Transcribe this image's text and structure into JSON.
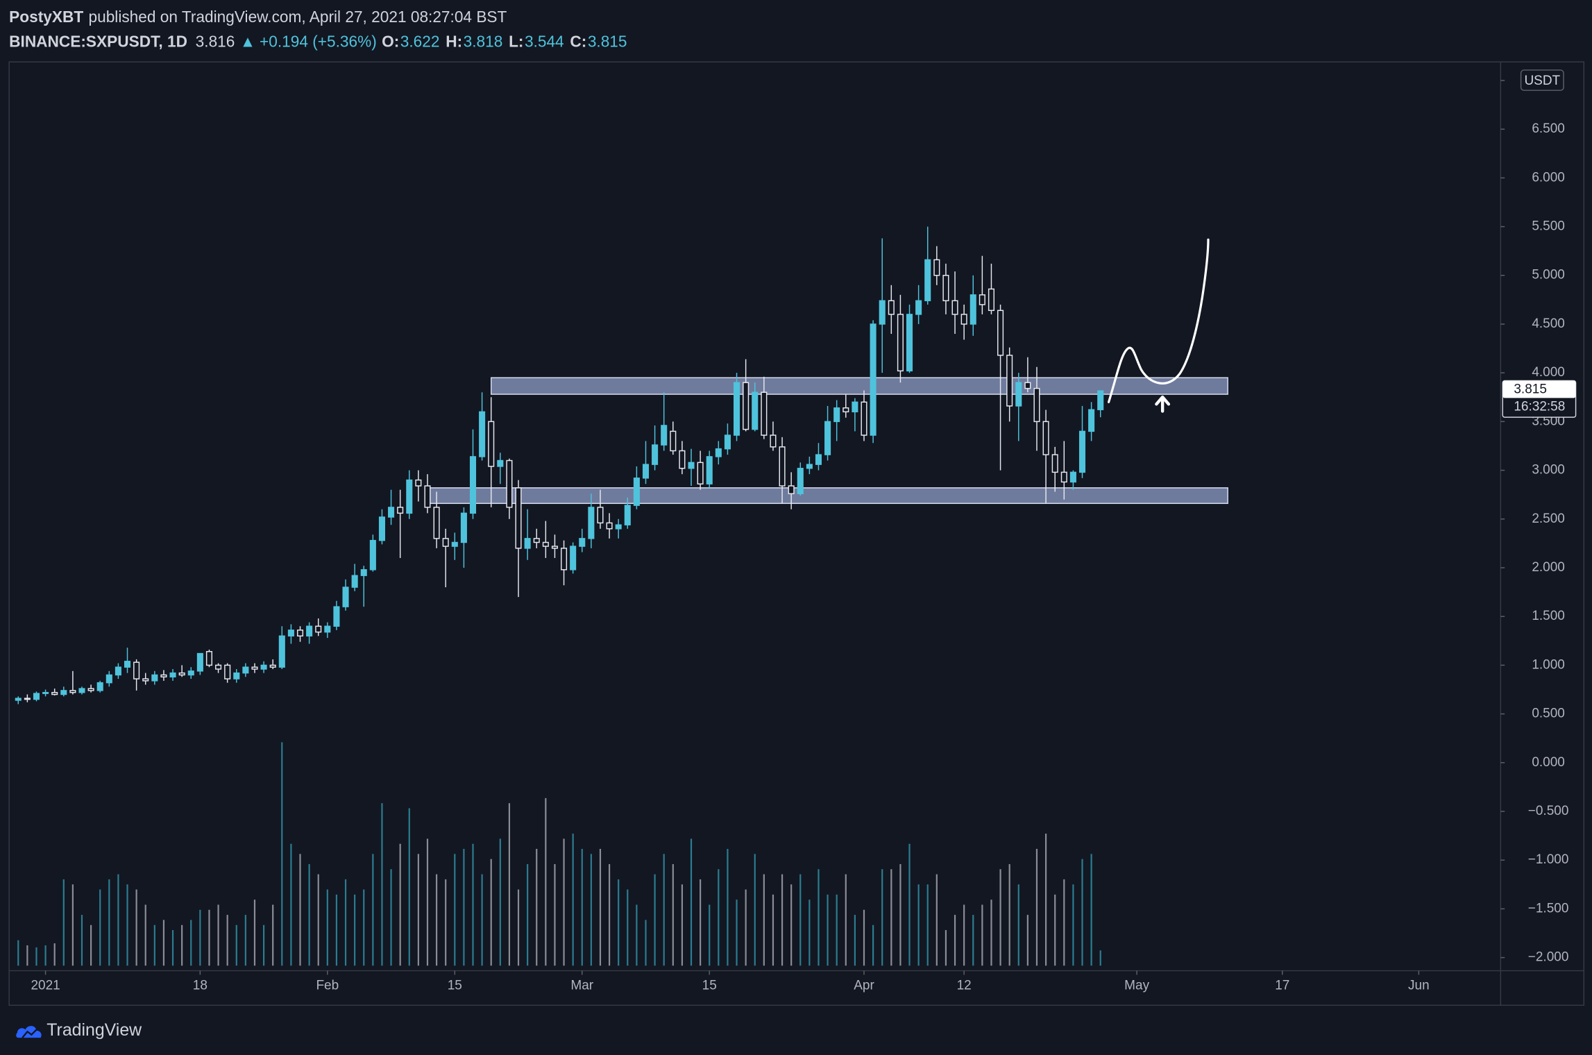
{
  "chart_data": {
    "type": "candlestick",
    "header": {
      "author": "PostyXBT",
      "published": "published on TradingView.com, April 27, 2021 08:27:04 BST",
      "symbol": "BINANCE:SXPUSDT, 1D",
      "last": "3.816",
      "arrow": "▲",
      "change": "+0.194 (+5.36%)",
      "ohlc_labels": [
        {
          "label": "O:",
          "value": "3.622"
        },
        {
          "label": "H:",
          "value": "3.818"
        },
        {
          "label": "L:",
          "value": "3.544"
        },
        {
          "label": "C:",
          "value": "3.815"
        }
      ]
    },
    "currency": "USDT",
    "price_label": "3.815",
    "countdown": "16:32:58",
    "footer": "TradingView",
    "up_color": "#4fc3dc",
    "down_color": "#e6e8ee",
    "volume_up_color": "#2b7d90",
    "volume_down_color": "#8a8d96",
    "zone_color": "rgba(168,186,232,0.62)",
    "xlim": [
      "2020-12-28",
      "2021-06-10"
    ],
    "ylim": [
      -2.135,
      7.19
    ],
    "xticks": [
      {
        "value": "2021-01-01",
        "label": "2021"
      },
      {
        "value": "2021-01-18",
        "label": "18"
      },
      {
        "value": "2021-02-01",
        "label": "Feb"
      },
      {
        "value": "2021-02-15",
        "label": "15"
      },
      {
        "value": "2021-03-01",
        "label": "Mar"
      },
      {
        "value": "2021-03-15",
        "label": "15"
      },
      {
        "value": "2021-04-01",
        "label": "Apr"
      },
      {
        "value": "2021-04-12",
        "label": "12"
      },
      {
        "value": "2021-05-01",
        "label": "May"
      },
      {
        "value": "2021-05-17",
        "label": "17"
      },
      {
        "value": "2021-06-01",
        "label": "Jun"
      }
    ],
    "yticks": [
      7,
      {
        "value": 6.5,
        "label": "6.500"
      },
      {
        "value": 6,
        "label": "6.000"
      },
      {
        "value": 5.5,
        "label": "5.500"
      },
      {
        "value": 5,
        "label": "5.000"
      },
      {
        "value": 4.5,
        "label": "4.500"
      },
      {
        "value": 4,
        "label": "4.000"
      },
      {
        "value": 3.5,
        "label": "3.500"
      },
      {
        "value": 3,
        "label": "3.000"
      },
      {
        "value": 2.5,
        "label": "2.500"
      },
      {
        "value": 2,
        "label": "2.000"
      },
      {
        "value": 1.5,
        "label": "1.500"
      },
      {
        "value": 1,
        "label": "1.000"
      },
      {
        "value": 0.5,
        "label": "0.500"
      },
      {
        "value": 0,
        "label": "0.000"
      },
      {
        "value": -0.5,
        "label": "−0.500"
      },
      {
        "value": -1,
        "label": "−1.000"
      },
      {
        "value": -1.5,
        "label": "−1.500"
      },
      {
        "value": -2,
        "label": "−2.000"
      }
    ],
    "zones": [
      {
        "x": [
          "2021-02-19",
          "2021-05-11"
        ],
        "y": [
          3.78,
          3.95
        ]
      },
      {
        "x": [
          "2021-02-12",
          "2021-05-11"
        ],
        "y": [
          2.66,
          2.82
        ]
      }
    ],
    "x": [
      "2020-12-29",
      "2020-12-30",
      "2020-12-31",
      "2021-01-01",
      "2021-01-02",
      "2021-01-03",
      "2021-01-04",
      "2021-01-05",
      "2021-01-06",
      "2021-01-07",
      "2021-01-08",
      "2021-01-09",
      "2021-01-10",
      "2021-01-11",
      "2021-01-12",
      "2021-01-13",
      "2021-01-14",
      "2021-01-15",
      "2021-01-16",
      "2021-01-17",
      "2021-01-18",
      "2021-01-19",
      "2021-01-20",
      "2021-01-21",
      "2021-01-22",
      "2021-01-23",
      "2021-01-24",
      "2021-01-25",
      "2021-01-26",
      "2021-01-27",
      "2021-01-28",
      "2021-01-29",
      "2021-01-30",
      "2021-01-31",
      "2021-02-01",
      "2021-02-02",
      "2021-02-03",
      "2021-02-04",
      "2021-02-05",
      "2021-02-06",
      "2021-02-07",
      "2021-02-08",
      "2021-02-09",
      "2021-02-10",
      "2021-02-11",
      "2021-02-12",
      "2021-02-13",
      "2021-02-14",
      "2021-02-15",
      "2021-02-16",
      "2021-02-17",
      "2021-02-18",
      "2021-02-19",
      "2021-02-20",
      "2021-02-21",
      "2021-02-22",
      "2021-02-23",
      "2021-02-24",
      "2021-02-25",
      "2021-02-26",
      "2021-02-27",
      "2021-02-28",
      "2021-03-01",
      "2021-03-02",
      "2021-03-03",
      "2021-03-04",
      "2021-03-05",
      "2021-03-06",
      "2021-03-07",
      "2021-03-08",
      "2021-03-09",
      "2021-03-10",
      "2021-03-11",
      "2021-03-12",
      "2021-03-13",
      "2021-03-14",
      "2021-03-15",
      "2021-03-16",
      "2021-03-17",
      "2021-03-18",
      "2021-03-19",
      "2021-03-20",
      "2021-03-21",
      "2021-03-22",
      "2021-03-23",
      "2021-03-24",
      "2021-03-25",
      "2021-03-26",
      "2021-03-27",
      "2021-03-28",
      "2021-03-29",
      "2021-03-30",
      "2021-03-31",
      "2021-04-01",
      "2021-04-02",
      "2021-04-03",
      "2021-04-04",
      "2021-04-05",
      "2021-04-06",
      "2021-04-07",
      "2021-04-08",
      "2021-04-09",
      "2021-04-10",
      "2021-04-11",
      "2021-04-12",
      "2021-04-13",
      "2021-04-14",
      "2021-04-15",
      "2021-04-16",
      "2021-04-17",
      "2021-04-18",
      "2021-04-19",
      "2021-04-20",
      "2021-04-21",
      "2021-04-22",
      "2021-04-23",
      "2021-04-24",
      "2021-04-25",
      "2021-04-26",
      "2021-04-27"
    ],
    "ohlc": [
      [
        0.64,
        0.68,
        0.6,
        0.66
      ],
      [
        0.66,
        0.7,
        0.62,
        0.65
      ],
      [
        0.65,
        0.73,
        0.63,
        0.71
      ],
      [
        0.71,
        0.75,
        0.68,
        0.72
      ],
      [
        0.72,
        0.76,
        0.69,
        0.7
      ],
      [
        0.7,
        0.78,
        0.68,
        0.74
      ],
      [
        0.74,
        0.94,
        0.7,
        0.72
      ],
      [
        0.72,
        0.78,
        0.7,
        0.76
      ],
      [
        0.76,
        0.8,
        0.72,
        0.74
      ],
      [
        0.74,
        0.84,
        0.72,
        0.82
      ],
      [
        0.82,
        0.94,
        0.78,
        0.9
      ],
      [
        0.9,
        1.02,
        0.86,
        0.98
      ],
      [
        0.98,
        1.18,
        0.92,
        1.04
      ],
      [
        1.03,
        1.06,
        0.74,
        0.86
      ],
      [
        0.86,
        0.92,
        0.8,
        0.84
      ],
      [
        0.84,
        0.94,
        0.8,
        0.9
      ],
      [
        0.9,
        0.95,
        0.84,
        0.88
      ],
      [
        0.88,
        0.96,
        0.84,
        0.92
      ],
      [
        0.92,
        1.0,
        0.88,
        0.9
      ],
      [
        0.9,
        0.98,
        0.86,
        0.94
      ],
      [
        0.94,
        1.06,
        0.9,
        1.12
      ],
      [
        1.14,
        1.16,
        0.98,
        1.0
      ],
      [
        1.0,
        1.02,
        0.92,
        0.96
      ],
      [
        1.0,
        1.02,
        0.82,
        0.86
      ],
      [
        0.86,
        0.96,
        0.82,
        0.92
      ],
      [
        0.92,
        1.02,
        0.88,
        0.98
      ],
      [
        0.98,
        1.02,
        0.92,
        0.96
      ],
      [
        0.96,
        1.04,
        0.92,
        1.0
      ],
      [
        1.0,
        1.06,
        0.96,
        0.98
      ],
      [
        0.98,
        1.4,
        0.96,
        1.3
      ],
      [
        1.3,
        1.42,
        1.22,
        1.36
      ],
      [
        1.36,
        1.4,
        1.24,
        1.3
      ],
      [
        1.3,
        1.44,
        1.22,
        1.4
      ],
      [
        1.4,
        1.48,
        1.3,
        1.34
      ],
      [
        1.34,
        1.44,
        1.28,
        1.4
      ],
      [
        1.4,
        1.66,
        1.36,
        1.6
      ],
      [
        1.6,
        1.88,
        1.56,
        1.8
      ],
      [
        1.8,
        2.04,
        1.76,
        1.92
      ],
      [
        1.92,
        2.02,
        1.6,
        1.98
      ],
      [
        1.98,
        2.34,
        1.96,
        2.28
      ],
      [
        2.28,
        2.6,
        2.24,
        2.52
      ],
      [
        2.52,
        2.8,
        2.44,
        2.62
      ],
      [
        2.62,
        2.8,
        2.1,
        2.56
      ],
      [
        2.56,
        3.0,
        2.5,
        2.9
      ],
      [
        2.9,
        3.0,
        2.68,
        2.84
      ],
      [
        2.84,
        2.96,
        2.56,
        2.62
      ],
      [
        2.62,
        2.78,
        2.2,
        2.3
      ],
      [
        2.3,
        2.4,
        1.8,
        2.22
      ],
      [
        2.22,
        2.36,
        2.08,
        2.26
      ],
      [
        2.26,
        2.62,
        2.0,
        2.56
      ],
      [
        2.56,
        3.42,
        2.5,
        3.14
      ],
      [
        3.14,
        3.8,
        3.1,
        3.6
      ],
      [
        3.5,
        3.75,
        2.62,
        3.04
      ],
      [
        3.04,
        3.18,
        2.86,
        3.1
      ],
      [
        3.1,
        3.12,
        2.5,
        2.62
      ],
      [
        2.82,
        2.9,
        1.7,
        2.2
      ],
      [
        2.2,
        2.6,
        2.08,
        2.3
      ],
      [
        2.3,
        2.4,
        2.2,
        2.26
      ],
      [
        2.26,
        2.48,
        2.1,
        2.22
      ],
      [
        2.22,
        2.34,
        2.1,
        2.2
      ],
      [
        2.2,
        2.28,
        1.82,
        1.98
      ],
      [
        1.98,
        2.26,
        1.94,
        2.22
      ],
      [
        2.22,
        2.4,
        2.16,
        2.3
      ],
      [
        2.3,
        2.76,
        2.2,
        2.62
      ],
      [
        2.62,
        2.8,
        2.4,
        2.46
      ],
      [
        2.46,
        2.56,
        2.3,
        2.4
      ],
      [
        2.4,
        2.5,
        2.3,
        2.44
      ],
      [
        2.44,
        2.72,
        2.4,
        2.64
      ],
      [
        2.64,
        3.04,
        2.6,
        2.92
      ],
      [
        2.92,
        3.3,
        2.86,
        3.06
      ],
      [
        3.06,
        3.46,
        3.0,
        3.26
      ],
      [
        3.26,
        3.8,
        3.2,
        3.46
      ],
      [
        3.4,
        3.5,
        3.16,
        3.2
      ],
      [
        3.2,
        3.3,
        2.96,
        3.02
      ],
      [
        3.02,
        3.22,
        2.84,
        3.08
      ],
      [
        3.08,
        3.2,
        2.8,
        2.86
      ],
      [
        2.86,
        3.2,
        2.82,
        3.14
      ],
      [
        3.14,
        3.3,
        3.06,
        3.22
      ],
      [
        3.22,
        3.48,
        3.16,
        3.36
      ],
      [
        3.36,
        4.0,
        3.3,
        3.9
      ],
      [
        3.9,
        4.14,
        3.4,
        3.42
      ],
      [
        3.42,
        3.9,
        3.4,
        3.8
      ],
      [
        3.8,
        3.96,
        3.32,
        3.36
      ],
      [
        3.36,
        3.5,
        3.2,
        3.24
      ],
      [
        3.24,
        3.34,
        2.66,
        2.84
      ],
      [
        2.84,
        2.98,
        2.6,
        2.76
      ],
      [
        2.76,
        3.08,
        2.74,
        3.02
      ],
      [
        3.02,
        3.14,
        2.96,
        3.06
      ],
      [
        3.06,
        3.28,
        3.0,
        3.16
      ],
      [
        3.16,
        3.66,
        3.1,
        3.5
      ],
      [
        3.5,
        3.72,
        3.3,
        3.64
      ],
      [
        3.64,
        3.78,
        3.54,
        3.6
      ],
      [
        3.6,
        3.74,
        3.4,
        3.7
      ],
      [
        3.7,
        3.82,
        3.3,
        3.36
      ],
      [
        3.36,
        4.54,
        3.28,
        4.5
      ],
      [
        4.5,
        5.38,
        4.0,
        4.74
      ],
      [
        4.74,
        4.9,
        4.4,
        4.6
      ],
      [
        4.6,
        4.8,
        3.9,
        4.02
      ],
      [
        4.02,
        4.7,
        4.0,
        4.6
      ],
      [
        4.6,
        4.9,
        4.5,
        4.74
      ],
      [
        4.74,
        5.5,
        4.7,
        5.16
      ],
      [
        5.16,
        5.3,
        4.9,
        5.0
      ],
      [
        5.0,
        5.12,
        4.6,
        4.74
      ],
      [
        4.74,
        5.04,
        4.4,
        4.6
      ],
      [
        4.6,
        4.7,
        4.34,
        4.5
      ],
      [
        4.5,
        5.0,
        4.38,
        4.8
      ],
      [
        4.8,
        5.2,
        4.6,
        4.7
      ],
      [
        4.86,
        5.12,
        4.6,
        4.64
      ],
      [
        4.64,
        4.7,
        3.0,
        4.18
      ],
      [
        4.18,
        4.26,
        3.5,
        3.66
      ],
      [
        3.66,
        4.0,
        3.3,
        3.9
      ],
      [
        3.9,
        4.16,
        3.8,
        3.84
      ],
      [
        3.84,
        4.06,
        3.2,
        3.5
      ],
      [
        3.5,
        3.62,
        2.66,
        3.16
      ],
      [
        3.16,
        3.24,
        2.78,
        2.98
      ],
      [
        2.98,
        3.3,
        2.7,
        2.88
      ],
      [
        2.88,
        3.0,
        2.8,
        2.98
      ],
      [
        2.98,
        3.66,
        2.92,
        3.4
      ],
      [
        3.4,
        3.7,
        3.3,
        3.622
      ],
      [
        3.622,
        3.818,
        3.544,
        3.815
      ]
    ],
    "volume": [
      25,
      20,
      18,
      20,
      22,
      85,
      80,
      50,
      40,
      75,
      85,
      90,
      80,
      75,
      60,
      40,
      45,
      35,
      40,
      45,
      55,
      55,
      60,
      50,
      40,
      50,
      65,
      40,
      60,
      220,
      120,
      110,
      100,
      90,
      75,
      70,
      85,
      70,
      75,
      110,
      160,
      95,
      120,
      155,
      110,
      125,
      90,
      85,
      110,
      115,
      120,
      90,
      105,
      125,
      160,
      75,
      100,
      115,
      165,
      100,
      125,
      130,
      115,
      110,
      115,
      100,
      85,
      75,
      60,
      45,
      90,
      110,
      100,
      80,
      125,
      85,
      60,
      95,
      115,
      65,
      75,
      110,
      90,
      70,
      90,
      80,
      90,
      65,
      95,
      70,
      70,
      90,
      50,
      55,
      40,
      95,
      95,
      100,
      120,
      80,
      80,
      90,
      35,
      50,
      60,
      50,
      60,
      65,
      95,
      100,
      80,
      50,
      115,
      130,
      70,
      85,
      80,
      105,
      110,
      15
    ]
  }
}
